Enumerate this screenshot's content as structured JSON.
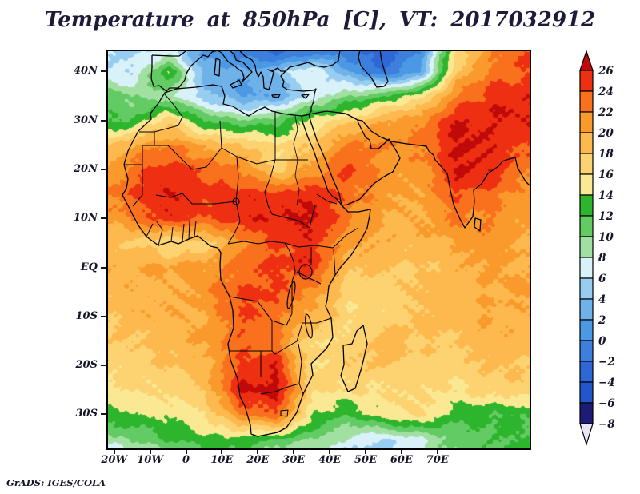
{
  "title": "Temperature at 850hPa [C], VT: 2017032912",
  "credit": "GrADS: IGES/COLA",
  "chart_data": {
    "type": "heatmap",
    "title": "Temperature at 850hPa [C], VT: 2017032912",
    "variable": "Temperature",
    "level": "850hPa",
    "units": "C",
    "valid_time": "2017032912",
    "xlabel": "",
    "ylabel": "",
    "lon_range": [
      -22,
      96
    ],
    "lat_range": [
      -37.5,
      44.5
    ],
    "grid_lines": false,
    "x_ticks": [
      {
        "label": "20W",
        "deg": -20
      },
      {
        "label": "10W",
        "deg": -10
      },
      {
        "label": "0",
        "deg": 0
      },
      {
        "label": "10E",
        "deg": 10
      },
      {
        "label": "20E",
        "deg": 20
      },
      {
        "label": "30E",
        "deg": 30
      },
      {
        "label": "40E",
        "deg": 40
      },
      {
        "label": "50E",
        "deg": 50
      },
      {
        "label": "60E",
        "deg": 60
      },
      {
        "label": "70E",
        "deg": 70
      }
    ],
    "y_ticks": [
      {
        "label": "40N",
        "deg": 40
      },
      {
        "label": "30N",
        "deg": 30
      },
      {
        "label": "20N",
        "deg": 20
      },
      {
        "label": "10N",
        "deg": 10
      },
      {
        "label": "EQ",
        "deg": 0
      },
      {
        "label": "10S",
        "deg": -10
      },
      {
        "label": "20S",
        "deg": -20
      },
      {
        "label": "30S",
        "deg": -30
      }
    ],
    "colorbar": {
      "position": "right",
      "levels": [
        -8,
        -6,
        -4,
        -2,
        0,
        2,
        4,
        6,
        8,
        10,
        12,
        14,
        16,
        18,
        20,
        22,
        24,
        26
      ],
      "labels_top_to_bottom": [
        "26",
        "24",
        "22",
        "20",
        "18",
        "16",
        "14",
        "12",
        "10",
        "8",
        "6",
        "4",
        "2",
        "0",
        "−2",
        "−4",
        "−6",
        "−8"
      ],
      "colors_cold_to_hot": [
        "#1c1c78",
        "#2256cc",
        "#2f68d6",
        "#3c7fdc",
        "#4b98e4",
        "#6fb2ea",
        "#97cdf0",
        "#d9f1f9",
        "#a2e0a2",
        "#63cb63",
        "#2eb52e",
        "#fbe892",
        "#fdd271",
        "#fdb94d",
        "#fb9a2c",
        "#f9701d",
        "#ee2f12"
      ],
      "over_color": "#c00a0a",
      "under_color": "#e9e5f8"
    },
    "grid": {
      "lons": [
        -25,
        -15,
        -5,
        5,
        15,
        25,
        35,
        45,
        55,
        65,
        75,
        85,
        95
      ],
      "lats": [
        45,
        40,
        35,
        30,
        25,
        20,
        15,
        10,
        5,
        0,
        -5,
        -10,
        -15,
        -20,
        -25,
        -30,
        -35,
        -40
      ],
      "values_c": [
        [
          6,
          5,
          5,
          1,
          -2,
          -4,
          -3,
          -2,
          -3,
          0,
          16,
          22,
          24
        ],
        [
          6,
          6,
          14,
          3,
          2,
          4,
          8,
          2,
          -2,
          2,
          18,
          23,
          24
        ],
        [
          12,
          10,
          8,
          5,
          2,
          2,
          7,
          10,
          12,
          16,
          22,
          25,
          26
        ],
        [
          11,
          12,
          17,
          12,
          10,
          11,
          15,
          17,
          20,
          22,
          26,
          26,
          26
        ],
        [
          18,
          20,
          22,
          20,
          18,
          16,
          18,
          22,
          22,
          22,
          26,
          26,
          24
        ],
        [
          20,
          23,
          25,
          24,
          22,
          17,
          21,
          24,
          21,
          21,
          26,
          26,
          22
        ],
        [
          21,
          24,
          26,
          25,
          25,
          25,
          26,
          23,
          21,
          20,
          24,
          23,
          21
        ],
        [
          20,
          22,
          25,
          24,
          25,
          26,
          27,
          22,
          20,
          20,
          22,
          22,
          20
        ],
        [
          19,
          18,
          16,
          17,
          22,
          24,
          25,
          21,
          19,
          19,
          20,
          21,
          20
        ],
        [
          20,
          20,
          20,
          21,
          23,
          24,
          26,
          18,
          18,
          18,
          19,
          20,
          20
        ],
        [
          19,
          19,
          20,
          21,
          24,
          25,
          21,
          17,
          17,
          18,
          19,
          20,
          20
        ],
        [
          18,
          19,
          20,
          20,
          24,
          23,
          20,
          16,
          17,
          18,
          19,
          20,
          19
        ],
        [
          17,
          18,
          19,
          20,
          24,
          22,
          16,
          17,
          19,
          18,
          18,
          19,
          19
        ],
        [
          16,
          17,
          18,
          19,
          25,
          26,
          16,
          18,
          18,
          17,
          17,
          18,
          18
        ],
        [
          15,
          16,
          17,
          18,
          26,
          27,
          16,
          16,
          16,
          16,
          16,
          17,
          17
        ],
        [
          13,
          14,
          15,
          16,
          22,
          24,
          14,
          12,
          15,
          16,
          13,
          12,
          12
        ],
        [
          8,
          10,
          12,
          13,
          13,
          12,
          10,
          8,
          6,
          8,
          11,
          12,
          12
        ],
        [
          1,
          4,
          8,
          10,
          10,
          7,
          5,
          4,
          4,
          6,
          10,
          12,
          12
        ]
      ]
    }
  }
}
